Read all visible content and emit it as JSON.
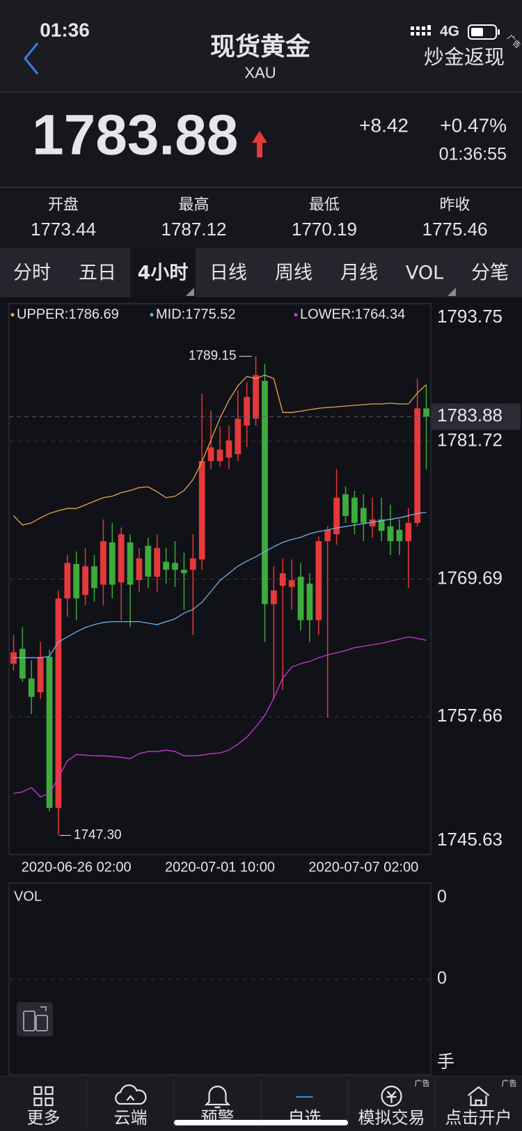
{
  "status_bar": {
    "time": "01:36",
    "network": "4G"
  },
  "header": {
    "title": "现货黄金",
    "subtitle": "XAU",
    "action": "炒金返现",
    "ad": "广告"
  },
  "quote": {
    "price": 1783.88,
    "change": "+8.42",
    "change_pct": "+0.47%",
    "time": "01:36:55"
  },
  "stats": [
    {
      "label": "开盘",
      "value": 1773.44
    },
    {
      "label": "最高",
      "value": 1787.12
    },
    {
      "label": "最低",
      "value": 1770.19
    },
    {
      "label": "昨收",
      "value": 1775.46
    }
  ],
  "tabs": [
    "分时",
    "五日",
    "4小时",
    "日线",
    "周线",
    "月线",
    "VOL",
    "分笔"
  ],
  "active_tab": 2,
  "chart_data": {
    "type": "candlestick",
    "categories": [
      null,
      null,
      null,
      null,
      null,
      null,
      null,
      "2020-06-26 02:00",
      null,
      null,
      null,
      null,
      null,
      null,
      null,
      null,
      null,
      null,
      null,
      null,
      null,
      null,
      null,
      "2020-07-01 10:00",
      null,
      null,
      null,
      null,
      null,
      null,
      null,
      null,
      null,
      null,
      null,
      null,
      null,
      null,
      null,
      "2020-07-07 02:00",
      null,
      null,
      null,
      null,
      null,
      null,
      null
    ],
    "open": [
      1762.3,
      1763.6,
      1761.0,
      1759.8,
      1762.9,
      1749.7,
      1768.0,
      1771.0,
      1768.3,
      1770.8,
      1769.2,
      1772.9,
      1769.4,
      1772.9,
      1769.6,
      1772.6,
      1769.9,
      1771.2,
      1771.1,
      1770.5,
      1770.5,
      1771.4,
      1780.0,
      1780.0,
      1780.3,
      1780.6,
      1783.1,
      1783.7,
      1787.0,
      1767.5,
      1769.1,
      1769.0,
      1769.9,
      1769.3,
      1766.1,
      1773.0,
      1773.6,
      1777.1,
      1776.8,
      1775.9,
      1774.3,
      1774.9,
      1774.3,
      1774.0,
      1773.0,
      1774.6,
      1784.6
    ],
    "high": [
      1764.8,
      1765.5,
      1762.6,
      1764.2,
      1763.5,
      1768.7,
      1771.8,
      1772.1,
      1772.4,
      1771.8,
      1774.9,
      1774.6,
      1774.2,
      1773.6,
      1772.4,
      1773.3,
      1773.6,
      1772.4,
      1773.0,
      1772.0,
      1773.6,
      1785.9,
      1784.4,
      1783.0,
      1783.1,
      1786.2,
      1786.9,
      1789.15,
      1788.5,
      1770.8,
      1771.5,
      1771.4,
      1771.1,
      1770.2,
      1773.4,
      1774.3,
      1779.3,
      1777.8,
      1777.4,
      1777.1,
      1776.8,
      1776.8,
      1776.2,
      1774.9,
      1775.9,
      1787.2,
      1786.6
    ],
    "low": [
      1761.7,
      1760.7,
      1757.9,
      1759.2,
      1749.4,
      1747.3,
      1766.4,
      1766.1,
      1767.4,
      1767.7,
      1767.4,
      1768.0,
      1766.1,
      1765.5,
      1768.6,
      1768.9,
      1768.6,
      1769.3,
      1769.0,
      1767.0,
      1764.8,
      1770.5,
      1779.3,
      1779.5,
      1779.3,
      1780.0,
      1781.2,
      1783.1,
      1764.2,
      1759.2,
      1760.0,
      1767.0,
      1765.2,
      1764.2,
      1764.8,
      1757.6,
      1772.7,
      1774.6,
      1773.6,
      1773.0,
      1773.3,
      1773.0,
      1771.8,
      1771.8,
      1768.9,
      1774.3,
      1779.3
    ],
    "close": [
      1763.3,
      1761.0,
      1759.4,
      1762.9,
      1749.7,
      1768.0,
      1771.1,
      1768.0,
      1770.8,
      1768.9,
      1773.0,
      1769.2,
      1773.6,
      1769.2,
      1771.5,
      1769.9,
      1772.4,
      1770.5,
      1770.5,
      1770.2,
      1771.5,
      1780.0,
      1781.2,
      1781.0,
      1781.8,
      1783.7,
      1785.6,
      1787.5,
      1767.5,
      1768.7,
      1770.2,
      1769.6,
      1766.1,
      1766.1,
      1773.0,
      1774.0,
      1776.8,
      1775.2,
      1774.6,
      1774.6,
      1774.9,
      1773.9,
      1773.0,
      1773.0,
      1774.6,
      1784.6,
      1783.88
    ],
    "up_color": "#e5393a",
    "down_color": "#3eab3c",
    "ylim": [
      1745.63,
      1793.75
    ],
    "yticks": [
      1793.75,
      1781.72,
      1769.69,
      1757.66,
      1745.63
    ],
    "grid": true,
    "bands": [
      {
        "name": "UPPER:1786.69",
        "color": "#e9a84e",
        "values": [
          1775.23,
          1774.41,
          1774.6,
          1775.04,
          1775.42,
          1775.67,
          1775.86,
          1775.86,
          1776.17,
          1776.49,
          1776.8,
          1776.93,
          1777.24,
          1777.43,
          1777.68,
          1777.75,
          1777.31,
          1776.8,
          1776.93,
          1777.43,
          1778.38,
          1779.95,
          1781.84,
          1783.73,
          1785.31,
          1786.57,
          1787.39,
          1787.2,
          1787.51,
          1787.2,
          1784.24,
          1784.24,
          1784.36,
          1784.49,
          1784.61,
          1784.68,
          1784.74,
          1784.8,
          1784.87,
          1784.93,
          1784.99,
          1784.99,
          1785.06,
          1784.99,
          1784.99,
          1785.94,
          1786.69
        ]
      },
      {
        "name": "MID:1775.52",
        "color": "#6db4ea",
        "values": [
          1762.82,
          1762.82,
          1762.82,
          1762.82,
          1762.94,
          1764.2,
          1764.64,
          1765.08,
          1765.46,
          1765.71,
          1765.9,
          1765.97,
          1765.97,
          1765.97,
          1765.97,
          1765.84,
          1765.71,
          1765.97,
          1766.22,
          1766.72,
          1767.04,
          1767.67,
          1768.61,
          1769.56,
          1770.19,
          1770.82,
          1771.26,
          1771.64,
          1772.08,
          1772.52,
          1772.9,
          1773.15,
          1773.34,
          1773.65,
          1773.84,
          1773.97,
          1774.16,
          1774.28,
          1774.41,
          1774.53,
          1774.66,
          1774.79,
          1774.91,
          1775.04,
          1775.23,
          1775.42,
          1775.52
        ]
      },
      {
        "name": "LOWER:1764.34",
        "color": "#c93cd4",
        "values": [
          1750.97,
          1751.1,
          1751.48,
          1750.66,
          1750.97,
          1752.36,
          1753.81,
          1754.37,
          1754.31,
          1754.25,
          1754.25,
          1754.19,
          1754.12,
          1754.0,
          1754.44,
          1754.63,
          1754.63,
          1754.75,
          1754.63,
          1754.25,
          1754.25,
          1754.31,
          1754.44,
          1754.5,
          1754.75,
          1755.26,
          1755.89,
          1756.77,
          1757.78,
          1759.29,
          1761.05,
          1762.0,
          1762.31,
          1762.5,
          1762.82,
          1763.07,
          1763.26,
          1763.45,
          1763.7,
          1763.82,
          1763.95,
          1764.08,
          1764.27,
          1764.45,
          1764.64,
          1764.51,
          1764.34
        ]
      }
    ],
    "annotations": {
      "high": 1789.15,
      "low": {
        "value": 1747.3,
        "label": "1747.30"
      }
    },
    "last_price": 1783.88
  },
  "volume": {
    "title": "VOL",
    "yticks": [
      0,
      0
    ],
    "unit": "手"
  },
  "bottom_nav": [
    {
      "label": "更多"
    },
    {
      "label": "云端"
    },
    {
      "label": "预警"
    },
    {
      "label": "自选"
    },
    {
      "label": "模拟交易",
      "ad": "广告"
    },
    {
      "label": "点击开户",
      "ad": "广告"
    }
  ],
  "active_nav": 3
}
